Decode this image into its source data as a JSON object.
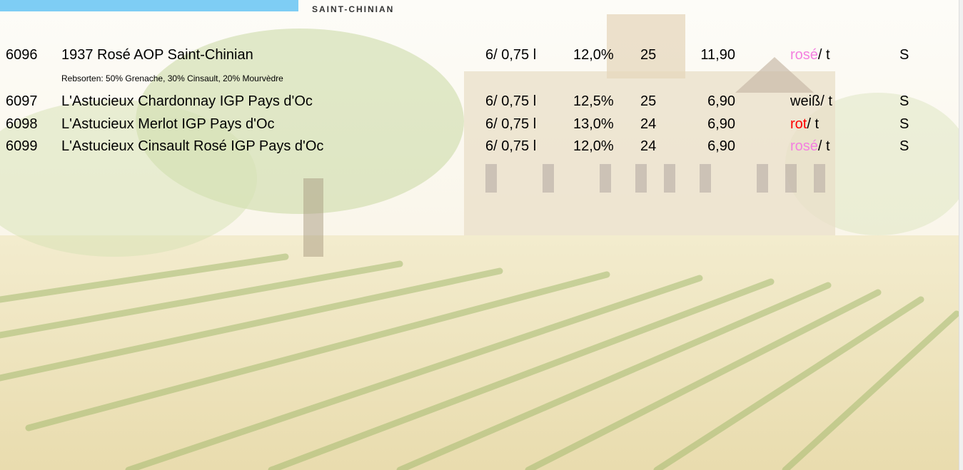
{
  "header": {
    "logo": "SAINT-CHINIAN"
  },
  "rows": [
    {
      "number": "6096",
      "name": "1937 Rosé AOP Saint-Chinian",
      "size": "6/ 0,75 l",
      "alcohol": "12,0%",
      "quantity": "25",
      "price": "11,90",
      "color": "rosé",
      "color_hex": "#f47fe0",
      "unit": "/ t",
      "flag": "S",
      "detail": "Rebsorten: 50% Grenache, 30% Cinsault, 20% Mourvèdre"
    },
    {
      "number": "6097",
      "name": "L'Astucieux Chardonnay IGP Pays d'Oc",
      "size": "6/ 0,75 l",
      "alcohol": "12,5%",
      "quantity": "25",
      "price": "6,90",
      "color": "weiß",
      "color_hex": "#000000",
      "unit": "/ t",
      "flag": "S"
    },
    {
      "number": "6098",
      "name": "L'Astucieux Merlot IGP Pays d'Oc",
      "size": "6/ 0,75 l",
      "alcohol": "13,0%",
      "quantity": "24",
      "price": "6,90",
      "color": "rot",
      "color_hex": "#ff0000",
      "unit": "/ t",
      "flag": "S"
    },
    {
      "number": "6099",
      "name": "L'Astucieux Cinsault Rosé IGP Pays d'Oc",
      "size": "6/ 0,75 l",
      "alcohol": "12,0%",
      "quantity": "24",
      "price": "6,90",
      "color": "rosé",
      "color_hex": "#f47fe0",
      "unit": "/ t",
      "flag": "S"
    }
  ]
}
